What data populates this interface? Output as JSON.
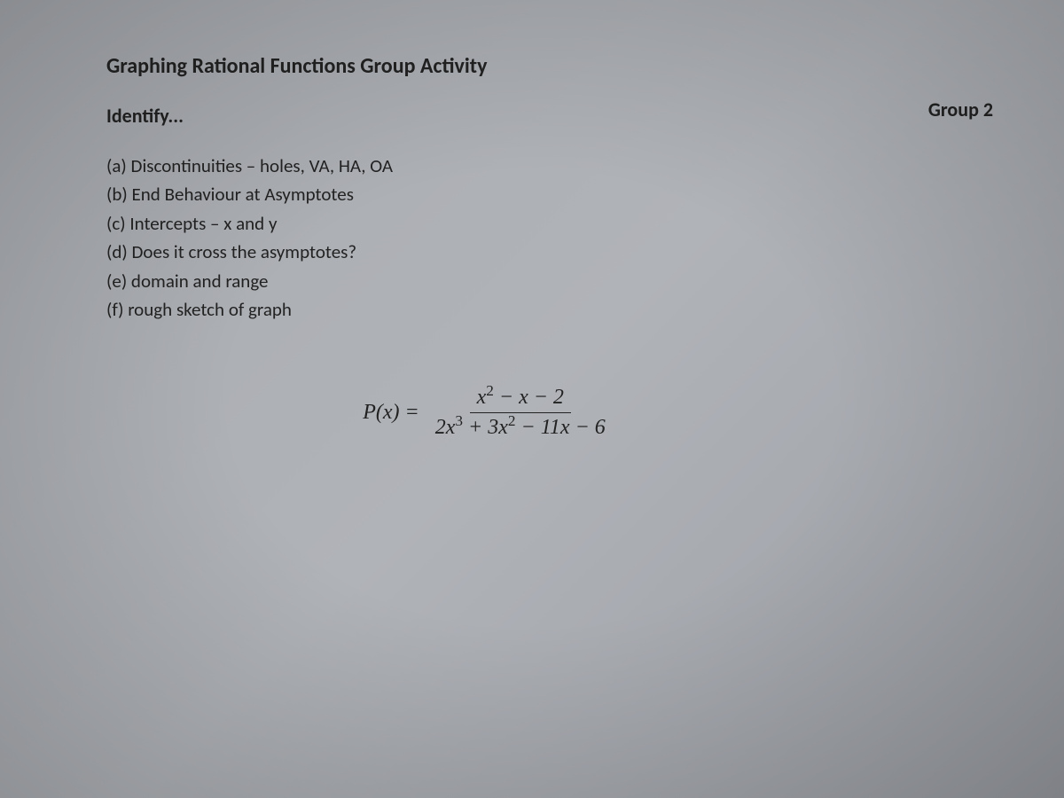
{
  "document": {
    "title": "Graphing Rational Functions Group Activity",
    "subtitle": "Identify...",
    "group_label": "Group 2",
    "instructions": [
      "(a) Discontinuities – holes, VA, HA, OA",
      "(b) End Behaviour at Asymptotes",
      "(c) Intercepts – x and y",
      "(d) Does it cross the asymptotes?",
      "(e) domain and range",
      "(f) rough sketch of graph"
    ],
    "equation": {
      "function_label": "P(x) =",
      "numerator_html": "x<span class=\"sup\">2</span> − x − 2",
      "denominator_html": "2x<span class=\"sup\">3</span> + 3x<span class=\"sup\">2</span> − 11x − 6"
    }
  },
  "style": {
    "background_color": "#a8abb0",
    "text_color": "#1a1a1a",
    "title_fontsize": 24,
    "body_fontsize": 21,
    "equation_fontsize": 24,
    "font_family_body": "Calibri",
    "font_family_math": "Cambria Math"
  }
}
